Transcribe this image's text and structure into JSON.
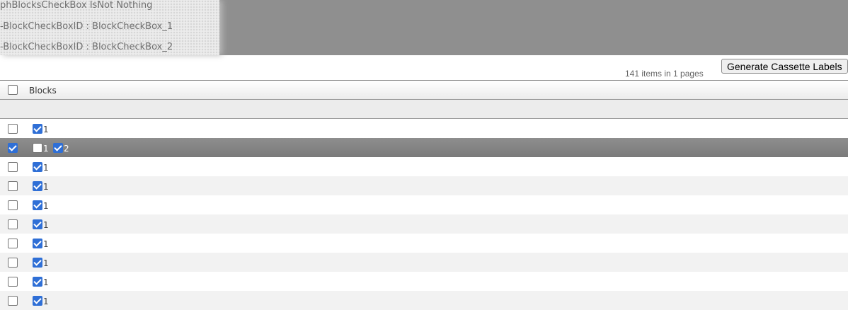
{
  "debug": {
    "lines": [
      "phBlocksCheckBox IsNot Nothing",
      "-BlockCheckBoxID : BlockCheckBox_1",
      "-BlockCheckBoxID : BlockCheckBox_2"
    ]
  },
  "toolbar": {
    "generate_label": "Generate Cassette Labels",
    "count_text": "141 items in 1 pages"
  },
  "grid": {
    "header": {
      "select_all": false,
      "column": "Blocks"
    },
    "rows": [
      {
        "selected": false,
        "blocks": [
          {
            "label": "1",
            "checked": true
          }
        ]
      },
      {
        "selected": true,
        "blocks": [
          {
            "label": "1",
            "checked": false
          },
          {
            "label": "2",
            "checked": true
          }
        ]
      },
      {
        "selected": false,
        "blocks": [
          {
            "label": "1",
            "checked": true
          }
        ]
      },
      {
        "selected": false,
        "blocks": [
          {
            "label": "1",
            "checked": true
          }
        ]
      },
      {
        "selected": false,
        "blocks": [
          {
            "label": "1",
            "checked": true
          }
        ]
      },
      {
        "selected": false,
        "blocks": [
          {
            "label": "1",
            "checked": true
          }
        ]
      },
      {
        "selected": false,
        "blocks": [
          {
            "label": "1",
            "checked": true
          }
        ]
      },
      {
        "selected": false,
        "blocks": [
          {
            "label": "1",
            "checked": true
          }
        ]
      },
      {
        "selected": false,
        "blocks": [
          {
            "label": "1",
            "checked": true
          }
        ]
      },
      {
        "selected": false,
        "blocks": [
          {
            "label": "1",
            "checked": true
          }
        ]
      }
    ]
  },
  "colors": {
    "accent": "#2f6fd6",
    "selected_row": "#858585",
    "banner": "#8f8f8f"
  }
}
